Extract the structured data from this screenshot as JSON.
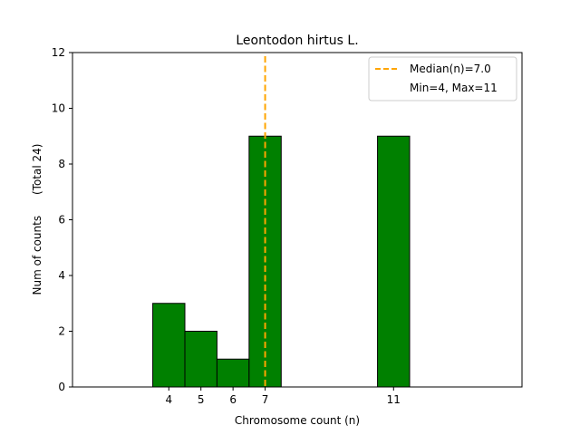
{
  "colors": {
    "bar_fill": "#008000",
    "bar_edge": "#000000",
    "median_line": "#FFA500",
    "axes": "#000000",
    "background": "#ffffff"
  },
  "chart_data": {
    "type": "bar",
    "title": "Leontodon hirtus L.",
    "xlabel": "Chromosome count (n)",
    "ylabel": "Num of counts      (Total 24)",
    "xlim": [
      1,
      15
    ],
    "ylim": [
      0,
      12
    ],
    "x": [
      4,
      5,
      6,
      7,
      11
    ],
    "values": [
      3,
      2,
      1,
      9,
      9
    ],
    "x_ticks": [
      4,
      5,
      6,
      7,
      11
    ],
    "x_tick_labels": [
      "4",
      "5",
      "6",
      "7",
      "11"
    ],
    "y_ticks": [
      0,
      2,
      4,
      6,
      8,
      10,
      12
    ],
    "y_tick_labels": [
      "0",
      "2",
      "4",
      "6",
      "8",
      "10",
      "12"
    ],
    "median": 7.0,
    "legend": {
      "placement": "top-right",
      "entries": [
        "Median(n)=7.0",
        "Min=4, Max=11"
      ]
    },
    "grid": false
  }
}
